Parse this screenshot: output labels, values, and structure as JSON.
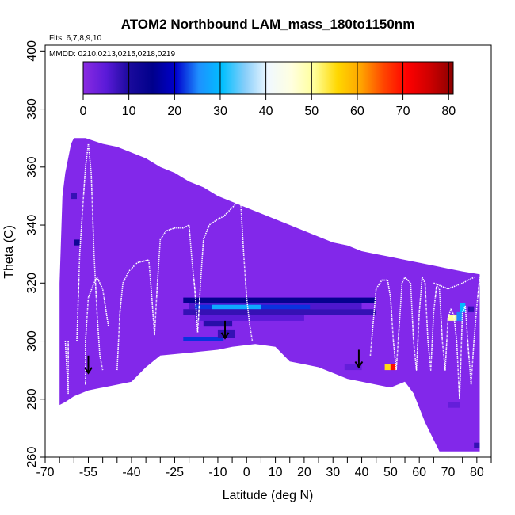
{
  "chart_data": {
    "type": "heatmap",
    "title": "ATOM2 Northbound LAM_mass_180to1150nm",
    "subtitle_flights": "Flts: 6,7,8,9,10",
    "subtitle_dates": "MMDD: 0210,0213,0215,0218,0219",
    "xlabel": "Latitude (deg N)",
    "ylabel": "Theta (C)",
    "xlim": [
      -70,
      85
    ],
    "ylim": [
      260,
      402
    ],
    "x_ticks": [
      -70,
      -55,
      -40,
      -25,
      -10,
      0,
      10,
      20,
      30,
      40,
      50,
      60,
      70,
      80
    ],
    "x_ticks_minor": [
      -65,
      -60,
      -50,
      -45,
      -35,
      -30,
      -20,
      -15,
      -5,
      5,
      15,
      25,
      35,
      45,
      55,
      65,
      75,
      85
    ],
    "y_ticks": [
      260,
      280,
      300,
      320,
      340,
      360,
      380,
      400
    ],
    "colorbar": {
      "range": [
        0,
        81
      ],
      "ticks": [
        0,
        10,
        20,
        30,
        40,
        50,
        60,
        70,
        80
      ],
      "colors": [
        "#8a2be2",
        "#5a1ad8",
        "#1a0a9c",
        "#00008b",
        "#0000cd",
        "#1e90ff",
        "#00bfff",
        "#87cefa",
        "#f0f8ff",
        "#ffffe0",
        "#ffff99",
        "#ffd700",
        "#ffa500",
        "#ff4500",
        "#ff0000",
        "#cd0000",
        "#8b0000"
      ]
    },
    "background_color": "#8228ea",
    "domain_top": [
      [
        -56,
        370
      ],
      [
        -50,
        368
      ],
      [
        -45,
        367
      ],
      [
        -40,
        365
      ],
      [
        -35,
        363
      ],
      [
        -30,
        360
      ],
      [
        -25,
        358
      ],
      [
        -20,
        355
      ],
      [
        -15,
        353
      ],
      [
        -10,
        350
      ],
      [
        -5,
        348
      ],
      [
        0,
        346
      ],
      [
        5,
        344
      ],
      [
        10,
        342
      ],
      [
        15,
        340
      ],
      [
        20,
        338
      ],
      [
        25,
        336
      ],
      [
        30,
        334
      ],
      [
        35,
        333
      ],
      [
        40,
        331
      ],
      [
        45,
        330
      ],
      [
        50,
        329
      ],
      [
        55,
        328
      ],
      [
        60,
        327
      ],
      [
        65,
        326
      ],
      [
        70,
        325
      ],
      [
        75,
        324
      ],
      [
        81,
        323
      ]
    ],
    "domain_bottom": [
      [
        81,
        262
      ],
      [
        74,
        262
      ],
      [
        67,
        262
      ],
      [
        62,
        272
      ],
      [
        58,
        282
      ],
      [
        55,
        286
      ],
      [
        50,
        284
      ],
      [
        45,
        285
      ],
      [
        40,
        286
      ],
      [
        35,
        287
      ],
      [
        30,
        289
      ],
      [
        25,
        291
      ],
      [
        20,
        292
      ],
      [
        15,
        293
      ],
      [
        10,
        298
      ],
      [
        3,
        299
      ],
      [
        -5,
        298
      ],
      [
        -10,
        297
      ],
      [
        -20,
        296
      ],
      [
        -30,
        295
      ],
      [
        -35,
        291
      ],
      [
        -40,
        286
      ],
      [
        -45,
        285
      ],
      [
        -50,
        284
      ],
      [
        -55,
        283
      ],
      [
        -60,
        281
      ],
      [
        -63,
        279
      ],
      [
        -65,
        278
      ]
    ],
    "domain_left": [
      [
        -65,
        278
      ],
      [
        -65,
        320
      ],
      [
        -64,
        350
      ],
      [
        -63,
        358
      ],
      [
        -61,
        368
      ],
      [
        -60,
        370
      ],
      [
        -56,
        370
      ]
    ],
    "cells": [
      {
        "x": [
          -22,
          45
        ],
        "y": [
          313,
          315
        ],
        "value": 14
      },
      {
        "x": [
          -20,
          40
        ],
        "y": [
          311,
          313
        ],
        "value": 6
      },
      {
        "x": [
          -18,
          22
        ],
        "y": [
          310.5,
          312.5
        ],
        "value": 22
      },
      {
        "x": [
          -12,
          5
        ],
        "y": [
          310.5,
          312.5
        ],
        "value": 28
      },
      {
        "x": [
          -22,
          45
        ],
        "y": [
          309,
          311
        ],
        "value": 8
      },
      {
        "x": [
          -18,
          20
        ],
        "y": [
          307,
          309
        ],
        "value": 5
      },
      {
        "x": [
          -15,
          -5
        ],
        "y": [
          305,
          307
        ],
        "value": 9
      },
      {
        "x": [
          -22,
          -8
        ],
        "y": [
          300,
          301.5
        ],
        "value": 22
      },
      {
        "x": [
          -10,
          -4
        ],
        "y": [
          301,
          304
        ],
        "value": 8
      },
      {
        "x": [
          34,
          40
        ],
        "y": [
          290,
          292
        ],
        "value": 4
      },
      {
        "x": [
          48,
          50
        ],
        "y": [
          290,
          292
        ],
        "value": 55
      },
      {
        "x": [
          50,
          52
        ],
        "y": [
          290,
          292
        ],
        "value": 70
      },
      {
        "x": [
          70,
          73
        ],
        "y": [
          307,
          309
        ],
        "value": 50
      },
      {
        "x": [
          73,
          75
        ],
        "y": [
          307,
          310
        ],
        "value": 25
      },
      {
        "x": [
          74,
          76
        ],
        "y": [
          310,
          313
        ],
        "value": 30
      },
      {
        "x": [
          77,
          79
        ],
        "y": [
          310,
          312
        ],
        "value": 8
      },
      {
        "x": [
          70,
          74
        ],
        "y": [
          277,
          279
        ],
        "value": 4
      },
      {
        "x": [
          79,
          81
        ],
        "y": [
          263,
          265
        ],
        "value": 8
      },
      {
        "x": [
          -60,
          -58
        ],
        "y": [
          333,
          335
        ],
        "value": 12
      },
      {
        "x": [
          -61,
          -59
        ],
        "y": [
          349,
          351
        ],
        "value": 8
      }
    ],
    "flight_tracks": [
      [
        [
          -59,
          300
        ],
        [
          -58,
          330
        ],
        [
          -57,
          345
        ],
        [
          -56,
          360
        ],
        [
          -55,
          368
        ],
        [
          -54,
          358
        ],
        [
          -53,
          330
        ],
        [
          -52,
          310
        ],
        [
          -51,
          295
        ],
        [
          -50,
          290
        ]
      ],
      [
        [
          -56,
          285
        ],
        [
          -56,
          300
        ],
        [
          -55,
          315
        ],
        [
          -53,
          320
        ],
        [
          -52,
          322
        ],
        [
          -51,
          320
        ],
        [
          -50,
          318
        ],
        [
          -48,
          305
        ]
      ],
      [
        [
          -45,
          290
        ],
        [
          -44,
          310
        ],
        [
          -43,
          320
        ],
        [
          -41,
          324
        ],
        [
          -38,
          327
        ],
        [
          -34,
          328
        ],
        [
          -33,
          316
        ],
        [
          -32,
          302
        ],
        [
          -31,
          320
        ],
        [
          -30,
          335
        ],
        [
          -28,
          338
        ],
        [
          -25,
          339
        ],
        [
          -22,
          339
        ],
        [
          -20,
          340
        ],
        [
          -19,
          328
        ],
        [
          -18,
          318
        ],
        [
          -17,
          303
        ]
      ],
      [
        [
          -17,
          303
        ],
        [
          -16,
          320
        ],
        [
          -15,
          335
        ],
        [
          -13,
          340
        ],
        [
          -10,
          342
        ],
        [
          -8,
          343
        ],
        [
          -6,
          345
        ],
        [
          -3,
          348
        ],
        [
          -2,
          347
        ],
        [
          -1,
          330
        ],
        [
          0,
          315
        ],
        [
          1,
          306
        ],
        [
          2,
          300
        ]
      ],
      [
        [
          43,
          295
        ],
        [
          45,
          318
        ],
        [
          47,
          321
        ],
        [
          49,
          321
        ],
        [
          50,
          315
        ],
        [
          51,
          300
        ],
        [
          52,
          290
        ],
        [
          53,
          305
        ],
        [
          54,
          320
        ],
        [
          55,
          322
        ],
        [
          57,
          320
        ],
        [
          58,
          300
        ],
        [
          59,
          290
        ],
        [
          60,
          310
        ],
        [
          61,
          322
        ],
        [
          62,
          320
        ],
        [
          63,
          300
        ],
        [
          64,
          290
        ],
        [
          65,
          310
        ],
        [
          66,
          319
        ],
        [
          67,
          318
        ],
        [
          68,
          300
        ],
        [
          69,
          290
        ],
        [
          70,
          308
        ],
        [
          71,
          311
        ],
        [
          72,
          309
        ],
        [
          73,
          300
        ],
        [
          74,
          280
        ],
        [
          75,
          310
        ],
        [
          76,
          312
        ],
        [
          77,
          298
        ],
        [
          78,
          285
        ],
        [
          79,
          300
        ],
        [
          80,
          312
        ],
        [
          81,
          322
        ]
      ],
      [
        [
          -63,
          300
        ],
        [
          -62,
          282
        ],
        [
          -62,
          300
        ]
      ],
      [
        [
          65,
          320
        ],
        [
          70,
          318
        ],
        [
          75,
          320
        ],
        [
          79,
          322
        ]
      ]
    ],
    "arrows": [
      [
        -55,
        289
      ],
      [
        -7.5,
        301
      ],
      [
        39,
        291
      ]
    ]
  }
}
